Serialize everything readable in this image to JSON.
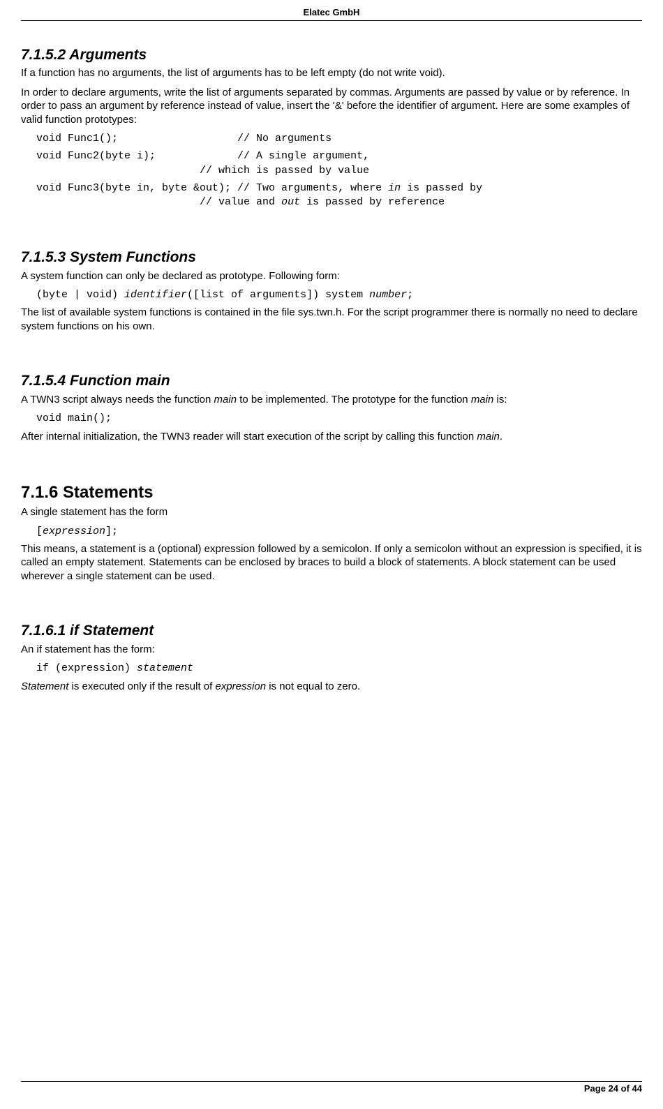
{
  "header": {
    "title": "Elatec GmbH"
  },
  "footer": {
    "text": "Page 24 of 44"
  },
  "sections": {
    "s1": {
      "heading": "7.1.5.2  Arguments",
      "p1": "If a function has no arguments, the list of arguments has to be left empty (do not write void).",
      "p2": "In order to declare arguments, write the list of arguments separated by commas. Arguments are passed by value or by reference. In order to pass an argument by reference instead of value, insert the '&' before the identifier of argument. Here are some examples of valid function prototypes:",
      "code1": "void Func1();                   // No arguments",
      "code2": "void Func2(byte i);             // A single argument,\n                          // which is passed by value",
      "code3_prefix": "void Func3(byte in, byte &out); // Two arguments, where ",
      "code3_in": "in",
      "code3_mid": " is passed by\n                          // value and ",
      "code3_out": "out",
      "code3_suffix": " is passed by reference"
    },
    "s2": {
      "heading": "7.1.5.3  System Functions",
      "p1": "A system function can only be declared as prototype. Following form:",
      "code_prefix": "(byte | void) ",
      "code_ident": "identifier",
      "code_mid": "([list of arguments]) system ",
      "code_num": "number",
      "code_suffix": ";",
      "p2": "The list of available system functions is contained in the file sys.twn.h. For the script programmer there is normally no need to declare system functions on his own."
    },
    "s3": {
      "heading": "7.1.5.4  Function main",
      "p1_a": "A TWN3 script always needs the function ",
      "p1_main1": "main",
      "p1_b": " to be implemented. The prototype for the function ",
      "p1_main2": "main",
      "p1_c": " is:",
      "code": "void main();",
      "p2_a": "After internal initialization, the TWN3 reader will start execution of the script by calling this function ",
      "p2_main": "main",
      "p2_b": "."
    },
    "s4": {
      "heading": "7.1.6  Statements",
      "p1": "A single statement has the form",
      "code_prefix": "[",
      "code_expr": "expression",
      "code_suffix": "];",
      "p2": "This means, a statement is a (optional) expression followed by a semicolon. If only a semicolon without an expression is specified, it is called an empty statement. Statements can be enclosed by braces to build a block of statements. A block statement can be used wherever a single statement can be used."
    },
    "s5": {
      "heading": "7.1.6.1  if Statement",
      "p1": "An if statement has the form:",
      "code_prefix": "if (expression) ",
      "code_stmt": "statement",
      "p2_a": "Statement",
      "p2_b": " is executed only if the result of ",
      "p2_c": "expression",
      "p2_d": " is not equal to zero."
    }
  }
}
